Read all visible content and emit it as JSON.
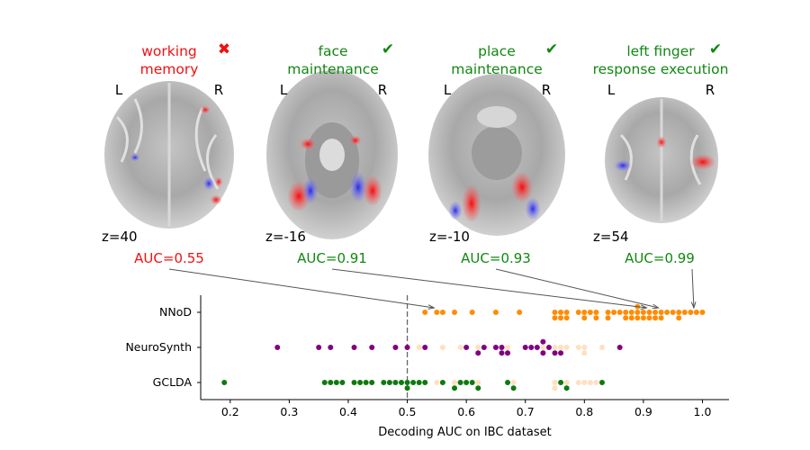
{
  "colors": {
    "fail": "#ee1111",
    "pass": "#118811",
    "nnod": "#ff8c00",
    "neurosynth": "#800080",
    "gclda": "#0e7a0e",
    "nnod_faded": "#ffe0c0"
  },
  "panels": [
    {
      "title_lines": [
        "working",
        "memory"
      ],
      "mark": "✖",
      "status": "fail",
      "left": "L",
      "right": "R",
      "z": "z=40",
      "auc": "AUC=0.55",
      "auc_value": 0.55
    },
    {
      "title_lines": [
        "face",
        "maintenance"
      ],
      "mark": "✔",
      "status": "pass",
      "left": "L",
      "right": "R",
      "z": "z=-16",
      "auc": "AUC=0.91",
      "auc_value": 0.91
    },
    {
      "title_lines": [
        "place",
        "maintenance"
      ],
      "mark": "✔",
      "status": "pass",
      "left": "L",
      "right": "R",
      "z": "z=-10",
      "auc": "AUC=0.93",
      "auc_value": 0.93
    },
    {
      "title_lines": [
        "left finger",
        "response execution"
      ],
      "mark": "✔",
      "status": "pass",
      "left": "L",
      "right": "R",
      "z": "z=54",
      "auc": "AUC=0.99",
      "auc_value": 0.99
    }
  ],
  "chart_data": {
    "type": "scatter",
    "subtype": "swarm",
    "xlabel": "Decoding AUC on IBC dataset",
    "xlim": [
      0.15,
      1.045
    ],
    "xticks": [
      "0.2",
      "0.3",
      "0.4",
      "0.5",
      "0.6",
      "0.7",
      "0.8",
      "0.9",
      "1.0"
    ],
    "chance_line": 0.5,
    "categories": [
      "NNoD",
      "NeuroSynth",
      "GCLDA"
    ],
    "series": [
      {
        "name": "NNoD",
        "color": "#ff8c00",
        "values": [
          0.53,
          0.55,
          0.56,
          0.58,
          0.61,
          0.65,
          0.69,
          0.75,
          0.75,
          0.76,
          0.76,
          0.77,
          0.77,
          0.79,
          0.8,
          0.8,
          0.81,
          0.82,
          0.82,
          0.84,
          0.84,
          0.85,
          0.86,
          0.87,
          0.87,
          0.88,
          0.88,
          0.89,
          0.89,
          0.89,
          0.9,
          0.9,
          0.91,
          0.91,
          0.92,
          0.92,
          0.93,
          0.93,
          0.94,
          0.95,
          0.96,
          0.96,
          0.97,
          0.98,
          0.99,
          1.0
        ]
      },
      {
        "name": "NeuroSynth",
        "color": "#800080",
        "faded_values": [
          0.52,
          0.56,
          0.59,
          0.62,
          0.67,
          0.73,
          0.75,
          0.76,
          0.77,
          0.79,
          0.8,
          0.8,
          0.83
        ],
        "values": [
          0.28,
          0.35,
          0.37,
          0.41,
          0.44,
          0.48,
          0.5,
          0.53,
          0.6,
          0.62,
          0.63,
          0.65,
          0.66,
          0.66,
          0.67,
          0.7,
          0.71,
          0.72,
          0.73,
          0.73,
          0.74,
          0.75,
          0.76,
          0.86
        ]
      },
      {
        "name": "GCLDA",
        "color": "#0e7a0e",
        "faded_values": [
          0.55,
          0.58,
          0.62,
          0.68,
          0.75,
          0.75,
          0.77,
          0.79,
          0.8,
          0.81,
          0.82
        ],
        "values": [
          0.19,
          0.36,
          0.37,
          0.38,
          0.39,
          0.41,
          0.42,
          0.43,
          0.44,
          0.46,
          0.47,
          0.48,
          0.49,
          0.5,
          0.5,
          0.51,
          0.52,
          0.53,
          0.56,
          0.58,
          0.59,
          0.6,
          0.61,
          0.62,
          0.67,
          0.68,
          0.76,
          0.77,
          0.83
        ]
      }
    ]
  }
}
